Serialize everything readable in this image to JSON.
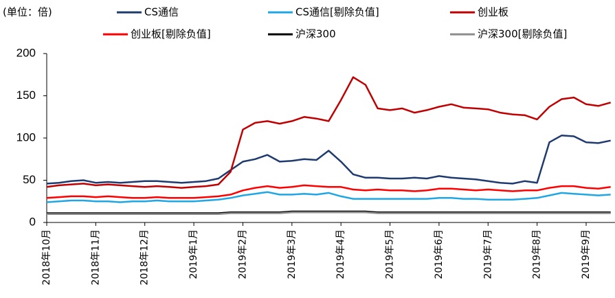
{
  "chart_data": {
    "type": "line",
    "y_axis_label": "(单位：倍)",
    "categories": [
      "2018年10月",
      null,
      null,
      null,
      "2018年11月",
      null,
      null,
      null,
      "2018年12月",
      null,
      null,
      null,
      "2019年1月",
      null,
      null,
      null,
      "2019年2月",
      null,
      null,
      null,
      "2019年3月",
      null,
      null,
      null,
      "2019年4月",
      null,
      null,
      null,
      "2019年5月",
      null,
      null,
      null,
      "2019年6月",
      null,
      null,
      null,
      "2019年7月",
      null,
      null,
      null,
      "2019年8月",
      null,
      null,
      null,
      "2019年9月",
      null,
      null
    ],
    "series": [
      {
        "name": "CS通信",
        "color": "#1f3a6e",
        "values": [
          46,
          47,
          49,
          50,
          47,
          48,
          47,
          48,
          49,
          49,
          48,
          47,
          48,
          49,
          52,
          62,
          72,
          75,
          80,
          72,
          73,
          75,
          74,
          85,
          72,
          57,
          53,
          53,
          52,
          52,
          53,
          52,
          55,
          53,
          52,
          51,
          49,
          47,
          46,
          49,
          47,
          95,
          103,
          102,
          95,
          94,
          97
        ]
      },
      {
        "name": "CS通信[剔除负值]",
        "color": "#1fa6e3",
        "values": [
          24,
          25,
          26,
          26,
          25,
          25,
          24,
          25,
          25,
          26,
          25,
          25,
          25,
          26,
          27,
          29,
          32,
          34,
          36,
          33,
          33,
          34,
          33,
          35,
          31,
          28,
          28,
          28,
          28,
          28,
          28,
          28,
          29,
          29,
          28,
          28,
          27,
          27,
          27,
          28,
          29,
          32,
          35,
          34,
          33,
          32,
          33
        ]
      },
      {
        "name": "创业板",
        "color": "#c00000",
        "values": [
          42,
          44,
          45,
          46,
          44,
          45,
          44,
          43,
          42,
          43,
          42,
          41,
          42,
          43,
          45,
          60,
          110,
          118,
          120,
          117,
          120,
          125,
          123,
          120,
          145,
          172,
          163,
          135,
          133,
          135,
          130,
          133,
          137,
          140,
          136,
          135,
          134,
          130,
          128,
          127,
          122,
          137,
          146,
          148,
          140,
          138,
          142
        ]
      },
      {
        "name": "创业板[剔除负值]",
        "color": "#ff0000",
        "values": [
          29,
          30,
          31,
          31,
          30,
          31,
          30,
          29,
          29,
          30,
          29,
          29,
          29,
          30,
          31,
          33,
          38,
          41,
          43,
          41,
          42,
          44,
          43,
          42,
          42,
          39,
          38,
          39,
          38,
          38,
          37,
          38,
          40,
          40,
          39,
          38,
          39,
          38,
          37,
          38,
          38,
          41,
          43,
          43,
          41,
          40,
          42
        ]
      },
      {
        "name": "沪深300",
        "color": "#000000",
        "values": [
          11,
          11,
          11,
          11,
          11,
          11,
          11,
          11,
          11,
          11,
          11,
          11,
          11,
          11,
          11,
          12,
          12,
          12,
          12,
          12,
          13,
          13,
          13,
          13,
          13,
          13,
          13,
          12,
          12,
          12,
          12,
          12,
          12,
          12,
          12,
          12,
          12,
          12,
          12,
          12,
          12,
          12,
          12,
          12,
          12,
          12,
          12
        ]
      },
      {
        "name": "沪深300[剔除负值]",
        "color": "#8c8c8c",
        "values": [
          10,
          10,
          10,
          10,
          10,
          10,
          10,
          10,
          10,
          10,
          10,
          10,
          10,
          10,
          10,
          11,
          11,
          11,
          11,
          11,
          12,
          12,
          12,
          12,
          12,
          12,
          12,
          11,
          11,
          11,
          11,
          11,
          11,
          11,
          11,
          11,
          11,
          11,
          11,
          11,
          11,
          11,
          11,
          11,
          11,
          11,
          11
        ]
      }
    ],
    "ylim": [
      0,
      200
    ],
    "yticks": [
      0,
      50,
      100,
      150,
      200
    ],
    "grid": false
  }
}
